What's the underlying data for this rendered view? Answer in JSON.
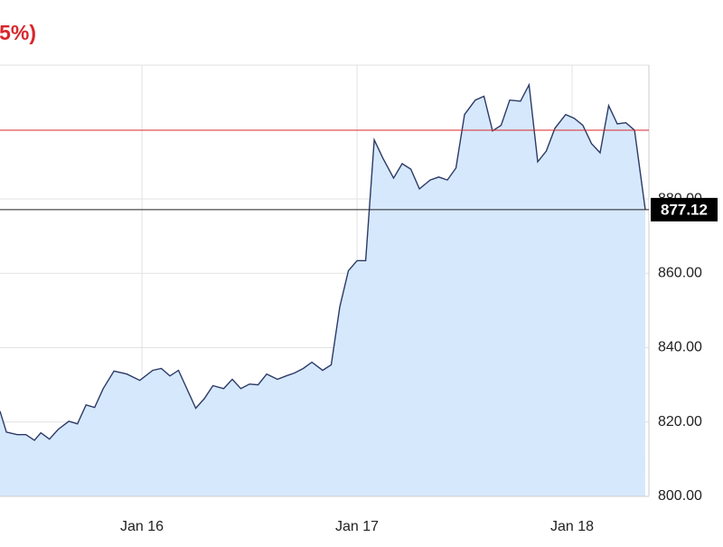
{
  "chart_data": {
    "type": "area",
    "title": "5%)",
    "x": [
      -0.66,
      -0.63,
      -0.58,
      -0.54,
      -0.5,
      -0.47,
      -0.43,
      -0.39,
      -0.34,
      -0.3,
      -0.26,
      -0.22,
      -0.18,
      -0.13,
      -0.07,
      -0.01,
      0.05,
      0.09,
      0.13,
      0.17,
      0.25,
      0.29,
      0.33,
      0.38,
      0.42,
      0.46,
      0.5,
      0.54,
      0.58,
      0.63,
      0.67,
      0.71,
      0.75,
      0.79,
      0.84,
      0.88,
      0.92,
      0.96,
      1.0,
      1.04,
      1.08,
      1.12,
      1.17,
      1.21,
      1.25,
      1.29,
      1.34,
      1.38,
      1.42,
      1.46,
      1.5,
      1.55,
      1.59,
      1.63,
      1.67,
      1.71,
      1.76,
      1.8,
      1.84,
      1.88,
      1.92,
      1.97,
      2.01,
      2.05,
      2.09,
      2.13,
      2.17,
      2.21,
      2.25,
      2.29,
      2.34
    ],
    "values": [
      822.9,
      817.3,
      816.6,
      816.6,
      815.1,
      817.1,
      815.4,
      818.0,
      820.2,
      819.5,
      824.6,
      823.9,
      829.0,
      833.7,
      832.9,
      831.2,
      833.9,
      834.4,
      832.4,
      833.9,
      823.7,
      826.3,
      829.8,
      829.0,
      831.5,
      829.0,
      830.2,
      830.0,
      832.9,
      831.5,
      832.4,
      833.2,
      834.4,
      836.1,
      833.9,
      835.4,
      851.0,
      860.7,
      863.4,
      863.4,
      895.9,
      891.0,
      885.6,
      889.5,
      888.0,
      882.7,
      885.1,
      885.9,
      885.1,
      888.3,
      902.7,
      906.6,
      907.6,
      898.3,
      899.8,
      906.6,
      906.3,
      910.7,
      890.0,
      892.9,
      899.0,
      902.7,
      901.7,
      899.8,
      894.9,
      892.4,
      905.1,
      900.2,
      900.5,
      898.5,
      877.12
    ],
    "line_color": "#2c3a66",
    "fill_color": "#d6e8fc",
    "reference_line": {
      "value": 898.5,
      "color": "#d9262b"
    },
    "current_price": 877.12,
    "xlim": [
      -0.66,
      2.357
    ],
    "xticks": [
      {
        "value": 0,
        "label": "Jan 16"
      },
      {
        "value": 1,
        "label": "Jan 17"
      },
      {
        "value": 2,
        "label": "Jan 18"
      }
    ],
    "ylim": [
      800,
      916
    ],
    "yticks": [
      {
        "value": 800,
        "label": "800.00"
      },
      {
        "value": 820,
        "label": "820.00"
      },
      {
        "value": 840,
        "label": "840.00"
      },
      {
        "value": 860,
        "label": "860.00"
      },
      {
        "value": 880,
        "label": "880.00"
      }
    ],
    "grid": true
  }
}
